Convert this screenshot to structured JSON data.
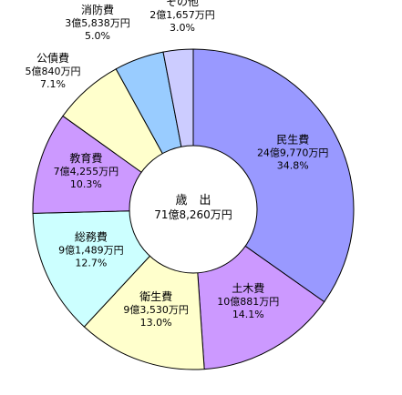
{
  "chart_data": {
    "type": "pie",
    "center_title": "歳　出",
    "center_total": "71億8,260万円",
    "slices": [
      {
        "name": "民生費",
        "amount": "24億9,770万円",
        "percent_label": "34.8%",
        "value": 34.8,
        "color": "#9999ff"
      },
      {
        "name": "土木費",
        "amount": "10億881万円",
        "percent_label": "14.1%",
        "value": 14.1,
        "color": "#cc99ff"
      },
      {
        "name": "衛生費",
        "amount": "9億3,530万円",
        "percent_label": "13.0%",
        "value": 13.0,
        "color": "#ffffcc"
      },
      {
        "name": "総務費",
        "amount": "9億1,489万円",
        "percent_label": "12.7%",
        "value": 12.7,
        "color": "#ccffff"
      },
      {
        "name": "教育費",
        "amount": "7億4,255万円",
        "percent_label": "10.3%",
        "value": 10.3,
        "color": "#cc99ff"
      },
      {
        "name": "公債費",
        "amount": "5億840万円",
        "percent_label": "7.1%",
        "value": 7.1,
        "color": "#ffffcc"
      },
      {
        "name": "消防費",
        "amount": "3億5,838万円",
        "percent_label": "5.0%",
        "value": 5.0,
        "color": "#99ccff"
      },
      {
        "name": "その他",
        "amount": "2億1,657万円",
        "percent_label": "3.0%",
        "value": 3.0,
        "color": "#ccccff"
      }
    ]
  }
}
